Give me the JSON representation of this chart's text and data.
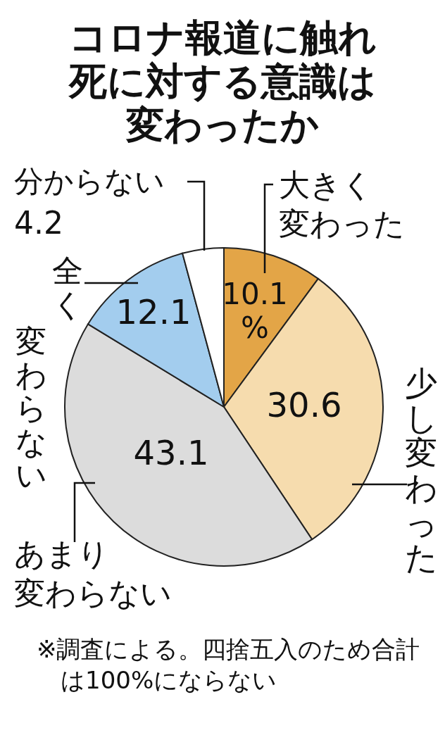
{
  "chart_data": {
    "type": "pie",
    "title": "コロナ報道に触れ死に対する意識は変わったか",
    "categories": [
      "大きく変わった",
      "少し変わった",
      "あまり変わらない",
      "全く変わらない",
      "分からない"
    ],
    "values": [
      10.1,
      30.6,
      43.1,
      12.1,
      4.2
    ],
    "colors": [
      "#e3a547",
      "#f6dcae",
      "#dcdcdc",
      "#a3cdee",
      "#ffffff"
    ],
    "value_labels": [
      "10.1%",
      "30.6",
      "43.1",
      "12.1",
      "4.2"
    ],
    "annotations": [
      "※調査による。四捨五入のため合計は100%にならない"
    ]
  }
}
